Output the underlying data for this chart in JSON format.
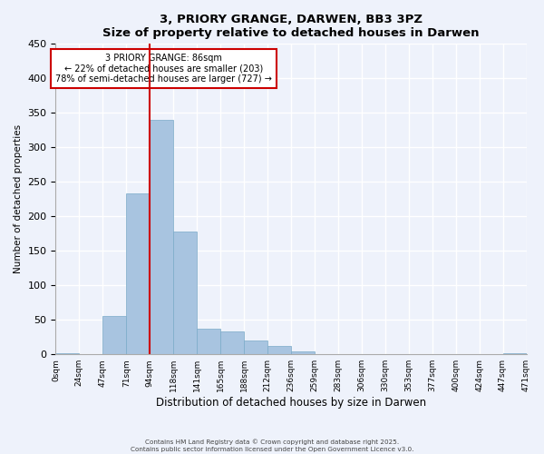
{
  "title": "3, PRIORY GRANGE, DARWEN, BB3 3PZ",
  "subtitle": "Size of property relative to detached houses in Darwen",
  "xlabel": "Distribution of detached houses by size in Darwen",
  "ylabel": "Number of detached properties",
  "bin_labels": [
    "0sqm",
    "24sqm",
    "47sqm",
    "71sqm",
    "94sqm",
    "118sqm",
    "141sqm",
    "165sqm",
    "188sqm",
    "212sqm",
    "236sqm",
    "259sqm",
    "283sqm",
    "306sqm",
    "330sqm",
    "353sqm",
    "377sqm",
    "400sqm",
    "424sqm",
    "447sqm",
    "471sqm"
  ],
  "bar_values": [
    2,
    0,
    55,
    233,
    340,
    178,
    37,
    33,
    20,
    12,
    4,
    0,
    0,
    0,
    0,
    0,
    0,
    0,
    0,
    2
  ],
  "bar_color": "#a8c4e0",
  "bar_edge_color": "#7aaac8",
  "property_line_x": 4,
  "property_line_color": "#cc0000",
  "annotation_text_line1": "3 PRIORY GRANGE: 86sqm",
  "annotation_text_line2": "← 22% of detached houses are smaller (203)",
  "annotation_text_line3": "78% of semi-detached houses are larger (727) →",
  "ylim": [
    0,
    450
  ],
  "yticks": [
    0,
    50,
    100,
    150,
    200,
    250,
    300,
    350,
    400,
    450
  ],
  "background_color": "#eef2fb",
  "grid_color": "#ffffff",
  "footnote1": "Contains HM Land Registry data © Crown copyright and database right 2025.",
  "footnote2": "Contains public sector information licensed under the Open Government Licence v3.0."
}
